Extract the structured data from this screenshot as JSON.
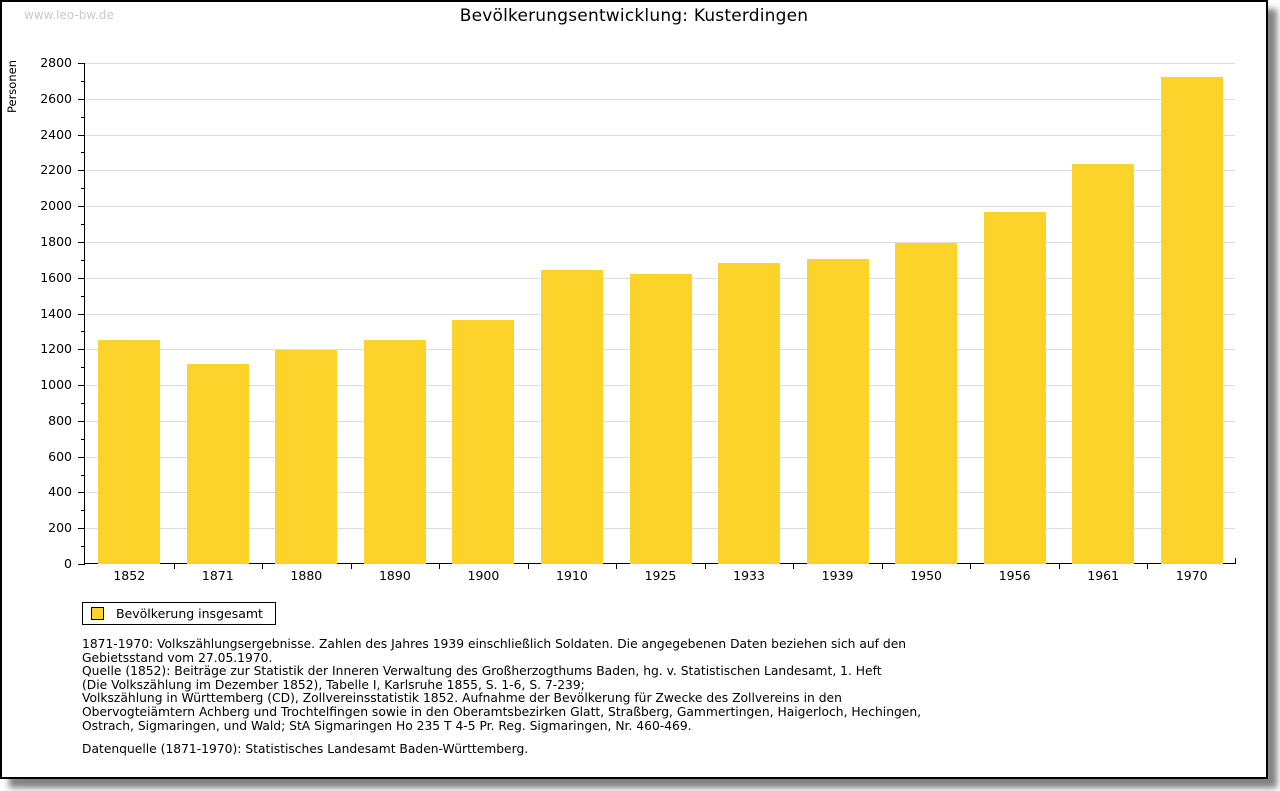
{
  "watermark": "www.leo-bw.de",
  "title": "Bevölkerungsentwicklung: Kusterdingen",
  "chart_data": {
    "type": "bar",
    "title": "Bevölkerungsentwicklung: Kusterdingen",
    "xlabel": "",
    "ylabel": "Personen",
    "categories": [
      "1852",
      "1871",
      "1880",
      "1890",
      "1900",
      "1910",
      "1925",
      "1933",
      "1939",
      "1950",
      "1956",
      "1961",
      "1970"
    ],
    "values": [
      1254,
      1120,
      1198,
      1254,
      1366,
      1641,
      1618,
      1680,
      1703,
      1794,
      1966,
      2233,
      2722
    ],
    "ylim": [
      0,
      2800
    ],
    "ytick_step": 200,
    "yminor_step": 100,
    "grid": true,
    "bar_color": "#fcd32b",
    "legend_position": "bottom-left",
    "legend": [
      {
        "label": "Bevölkerung insgesamt",
        "color": "#fcd32b"
      }
    ]
  },
  "legend": {
    "label": "Bevölkerung insgesamt"
  },
  "notes": {
    "block": "1871-1970: Volkszählungsergebnisse. Zahlen des Jahres 1939 einschließlich Soldaten. Die angegebenen Daten beziehen sich auf den\nGebietsstand vom 27.05.1970.\nQuelle (1852): Beiträge zur Statistik der Inneren Verwaltung des Großherzogthums Baden, hg. v. Statistischen Landesamt, 1. Heft\n(Die Volkszählung im Dezember 1852), Tabelle I, Karlsruhe 1855, S. 1-6, S. 7-239;\nVolkszählung in Württemberg (CD), Zollvereinsstatistik 1852. Aufnahme der Bevölkerung für Zwecke des Zollvereins in den\nObervogteiämtern Achberg und Trochtelfingen sowie in den Oberamtsbezirken Glatt, Straßberg, Gammertingen, Haigerloch, Hechingen,\nOstrach, Sigmaringen, und Wald; StA Sigmaringen Ho 235 T 4-5 Pr. Reg. Sigmaringen, Nr. 460-469.",
    "source": "Datenquelle (1871-1970): Statistisches Landesamt Baden-Württemberg."
  },
  "colors": {
    "bar": "#fcd32b",
    "gridline": "#dcdcdc",
    "watermark": "#c9c9c9",
    "axis": "#000000"
  }
}
